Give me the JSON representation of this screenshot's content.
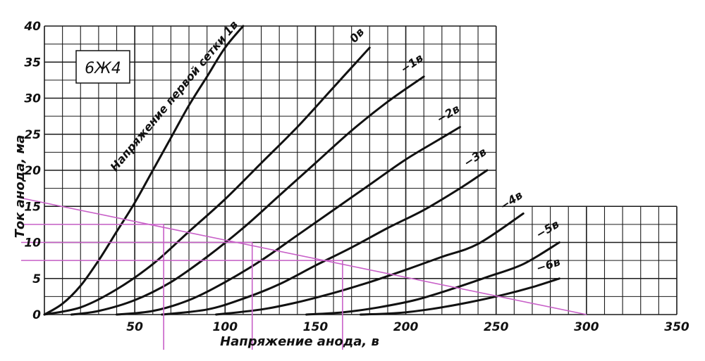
{
  "chart_data": {
    "type": "line",
    "title": "",
    "tube_label": "6Ж4",
    "xlabel": "Напряжение анода, в",
    "ylabel": "Ток анода, ма",
    "xlim": [
      0,
      350
    ],
    "ylim": [
      0,
      40
    ],
    "x_ticks": [
      50,
      100,
      150,
      200,
      250,
      300,
      350
    ],
    "y_ticks": [
      0,
      5,
      10,
      15,
      20,
      25,
      30,
      35,
      40
    ],
    "grid": true,
    "grid_step": {
      "x": 10,
      "y": 2.5
    },
    "series": [
      {
        "name": "Напряжение первой сетки 1в",
        "label": "Напряжение первой сетки 1в",
        "x": [
          0,
          10,
          20,
          30,
          40,
          50,
          60,
          70,
          80,
          90,
          100,
          110
        ],
        "y": [
          0,
          1.5,
          4,
          7.5,
          11.5,
          15.5,
          20,
          24.5,
          29,
          33,
          37,
          40
        ]
      },
      {
        "name": "0в",
        "label": "0в",
        "x": [
          0,
          20,
          40,
          60,
          80,
          100,
          120,
          140,
          160,
          180
        ],
        "y": [
          0,
          1,
          3.5,
          7,
          11.5,
          16,
          21,
          26,
          31.5,
          37
        ]
      },
      {
        "name": "−1в",
        "label": "−1в",
        "x": [
          15,
          30,
          50,
          70,
          90,
          110,
          130,
          150,
          170,
          190,
          210
        ],
        "y": [
          0,
          0.5,
          2,
          4.5,
          8,
          12,
          16.5,
          21,
          25.5,
          29.5,
          33
        ]
      },
      {
        "name": "−2в",
        "label": "−2в",
        "x": [
          40,
          60,
          80,
          100,
          120,
          140,
          160,
          180,
          200,
          220,
          230
        ],
        "y": [
          0,
          0.5,
          2,
          4.5,
          7.5,
          11,
          14.5,
          18,
          21.5,
          24.5,
          26
        ]
      },
      {
        "name": "−3в",
        "label": "−3в",
        "x": [
          65,
          90,
          110,
          130,
          150,
          170,
          190,
          210,
          230,
          245
        ],
        "y": [
          0,
          0.7,
          2.2,
          4.2,
          6.8,
          9.3,
          12,
          14.5,
          17.5,
          20
        ]
      },
      {
        "name": "−4в",
        "label": "−4в",
        "x": [
          95,
          120,
          140,
          160,
          180,
          200,
          220,
          240,
          265
        ],
        "y": [
          0,
          0.7,
          1.7,
          3,
          4.5,
          6.2,
          8,
          9.8,
          14
        ]
      },
      {
        "name": "−5в",
        "label": "−5в",
        "x": [
          145,
          165,
          185,
          205,
          225,
          245,
          265,
          285
        ],
        "y": [
          0,
          0.3,
          1,
          2,
          3.5,
          5.2,
          7,
          10
        ]
      },
      {
        "name": "−6в",
        "label": "−6в",
        "x": [
          175,
          195,
          215,
          235,
          255,
          270,
          285
        ],
        "y": [
          0,
          0.2,
          0.8,
          1.7,
          2.8,
          3.8,
          5
        ]
      }
    ],
    "load_line": {
      "x": [
        0,
        300
      ],
      "y": [
        16,
        0
      ]
    },
    "operating_points": [
      {
        "x": 66,
        "y": 12.5
      },
      {
        "x": 115,
        "y": 10
      },
      {
        "x": 165,
        "y": 7.5
      }
    ]
  },
  "colors": {
    "ink": "#111111",
    "grid": "#1a1a1a",
    "annotation": "#c860c8",
    "background": "#ffffff"
  }
}
